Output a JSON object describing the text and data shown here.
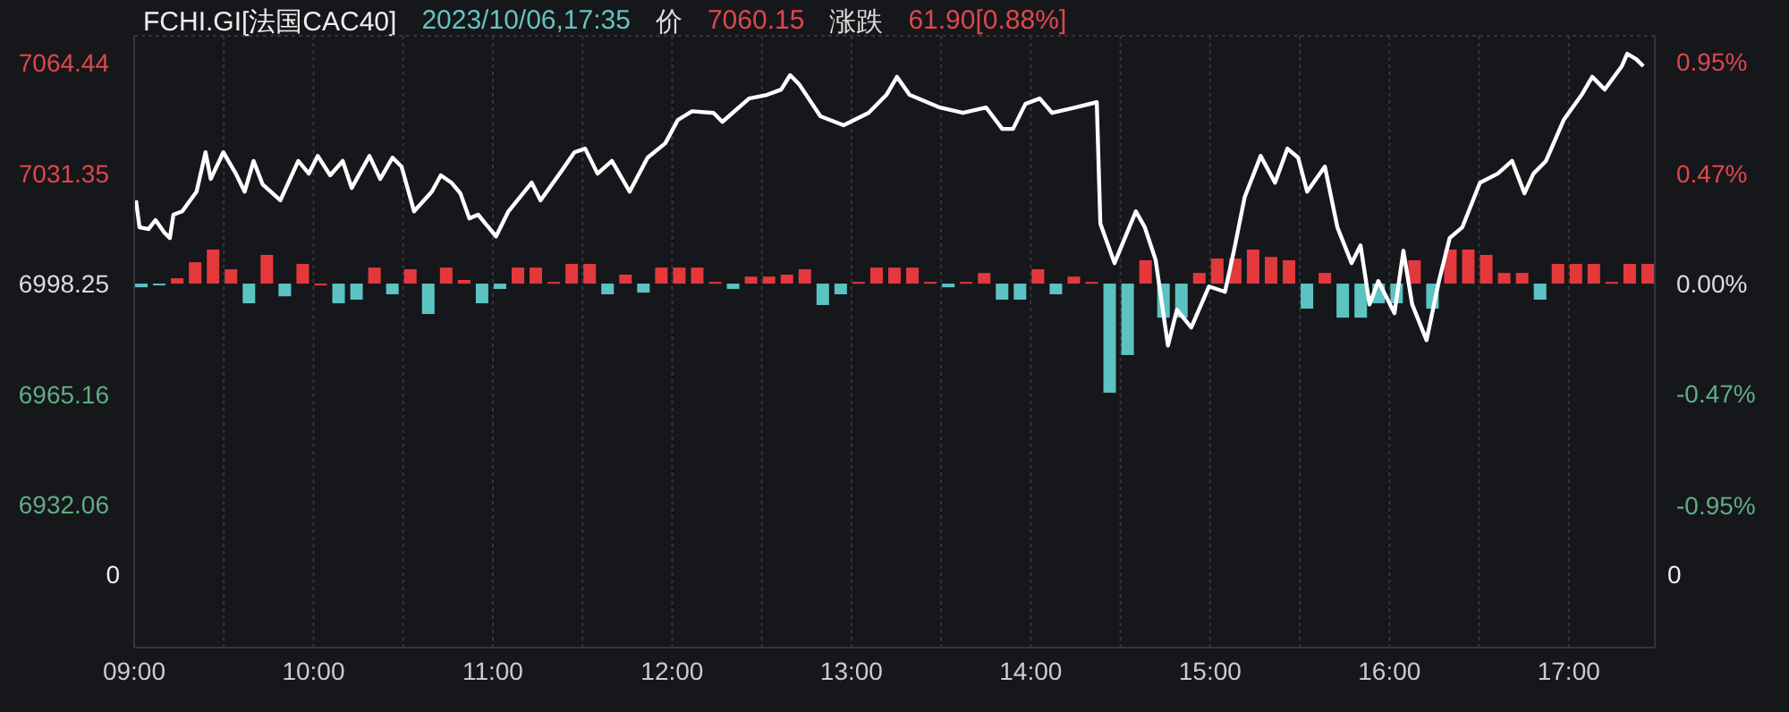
{
  "chart_data": {
    "type": "line",
    "title": "FCHI.GI[法国CAC40]",
    "annotations": [
      "2023/10/06,17:35",
      "价",
      "7060.15",
      "涨跌",
      "61.90[0.88%]",
      "0",
      "0"
    ],
    "xlim": [
      9,
      17.48
    ],
    "xticks": [
      {
        "value": 9,
        "label": "09:00"
      },
      {
        "value": 9.5,
        "label": null
      },
      {
        "value": 10,
        "label": "10:00"
      },
      {
        "value": 10.5,
        "label": null
      },
      {
        "value": 11,
        "label": "11:00"
      },
      {
        "value": 11.5,
        "label": null
      },
      {
        "value": 12,
        "label": "12:00"
      },
      {
        "value": 12.5,
        "label": null
      },
      {
        "value": 13,
        "label": "13:00"
      },
      {
        "value": 13.5,
        "label": null
      },
      {
        "value": 14,
        "label": "14:00"
      },
      {
        "value": 14.5,
        "label": null
      },
      {
        "value": 15,
        "label": "15:00"
      },
      {
        "value": 15.5,
        "label": null
      },
      {
        "value": 16,
        "label": "16:00"
      },
      {
        "value": 16.5,
        "label": null
      },
      {
        "value": 17,
        "label": "17:00"
      }
    ],
    "ylim": [
      6889.2,
      7072.5
    ],
    "yticks": [
      7064.44,
      7031.35,
      6998.25,
      6965.16,
      6932.06
    ],
    "y2lim": [
      -1.558,
      1.061
    ],
    "y2ticks": [
      {
        "value": 0.95,
        "label": "0.95%"
      },
      {
        "value": 0.47,
        "label": "0.47%"
      },
      {
        "value": 0,
        "label": "0.00%"
      },
      {
        "value": -0.47,
        "label": "-0.47%"
      },
      {
        "value": -0.95,
        "label": "-0.95%"
      }
    ],
    "grid": true,
    "series": [
      {
        "type": "bar",
        "x": [
          9.04,
          9.14,
          9.24,
          9.34,
          9.44,
          9.54,
          9.64,
          9.74,
          9.84,
          9.94,
          10.04,
          10.14,
          10.24,
          10.34,
          10.44,
          10.54,
          10.64,
          10.74,
          10.84,
          10.94,
          11.04,
          11.14,
          11.24,
          11.34,
          11.44,
          11.54,
          11.64,
          11.74,
          11.84,
          11.94,
          12.04,
          12.14,
          12.24,
          12.34,
          12.44,
          12.54,
          12.64,
          12.74,
          12.84,
          12.94,
          13.04,
          13.14,
          13.24,
          13.34,
          13.44,
          13.54,
          13.64,
          13.74,
          13.84,
          13.94,
          14.04,
          14.14,
          14.24,
          14.34,
          14.44,
          14.54,
          14.64,
          14.74,
          14.84,
          14.94,
          15.04,
          15.14,
          15.24,
          15.34,
          15.44,
          15.54,
          15.64,
          15.74,
          15.84,
          15.94,
          16.04,
          16.14,
          16.24,
          16.34,
          16.44,
          16.54,
          16.64,
          16.74,
          16.84,
          16.94,
          17.04,
          17.14,
          17.24,
          17.34,
          17.44
        ],
        "values": [
          -1.1,
          -0.5,
          1.6,
          6.4,
          10.2,
          4.3,
          -5.9,
          8.6,
          -3.8,
          5.9,
          0,
          -5.9,
          -4.8,
          4.8,
          -3.2,
          4.3,
          -9.1,
          4.8,
          1.1,
          -5.9,
          -1.6,
          4.8,
          4.8,
          0.5,
          5.9,
          5.9,
          -3.2,
          2.7,
          -2.7,
          4.8,
          4.8,
          4.8,
          0.5,
          -1.6,
          2.1,
          2.1,
          2.7,
          4.3,
          -6.4,
          -3.2,
          0.5,
          4.8,
          4.8,
          4.8,
          0.5,
          -1.1,
          0.5,
          3.2,
          -4.8,
          -4.8,
          4.3,
          -3.2,
          2.1,
          0.5,
          -32.7,
          -21.4,
          7.0,
          -10.2,
          -10.2,
          3.2,
          7.5,
          7.5,
          10.2,
          8.0,
          7.0,
          -7.5,
          3.2,
          -10.2,
          -10.2,
          -5.9,
          -5.9,
          7.0,
          -7.5,
          10.2,
          10.2,
          8.6,
          3.2,
          3.2,
          -4.8,
          5.9,
          5.9,
          5.9,
          0.5,
          5.9,
          5.9
        ],
        "base": [
          6998.25,
          6998.25,
          6998.25,
          6998.25,
          6998.25,
          6998.25,
          6998.25,
          6998.25,
          6998.25,
          6998.25,
          6998.25,
          6998.25,
          6998.25,
          6998.25,
          6998.25,
          6998.25,
          6998.25,
          6998.25,
          6998.25,
          6998.25,
          6998.25,
          6998.25,
          6998.25,
          6998.25,
          6998.25,
          6998.25,
          6998.25,
          6998.25,
          6998.25,
          6998.25,
          6998.25,
          6998.25,
          6998.25,
          6998.25,
          6998.25,
          6998.25,
          6998.25,
          6998.25,
          6998.25,
          6998.25,
          6998.25,
          6998.25,
          6998.25,
          6998.25,
          6998.25,
          6998.25,
          6998.25,
          6998.25,
          6998.25,
          6998.25,
          6998.25,
          6998.25,
          6998.25,
          6998.25,
          6998.25,
          6998.25,
          6998.25,
          6998.25,
          6998.25,
          6998.25,
          6998.25,
          6998.25,
          6998.25,
          6998.25,
          6998.25,
          6998.25,
          6998.25,
          6998.25,
          6998.25,
          6998.25,
          6998.25,
          6998.25,
          6998.25,
          6998.25,
          6998.25,
          6998.25,
          6998.25,
          6998.25,
          6998.25,
          6998.25,
          6998.25,
          6998.25,
          6998.25,
          6998.25,
          6998.25
        ],
        "colors": [
          "#5cc3c3",
          "#5cc3c3",
          "#e4393c",
          "#e4393c",
          "#e4393c",
          "#e4393c",
          "#5cc3c3",
          "#e4393c",
          "#5cc3c3",
          "#e4393c",
          "#e4393c",
          "#5cc3c3",
          "#5cc3c3",
          "#e4393c",
          "#5cc3c3",
          "#e4393c",
          "#5cc3c3",
          "#e4393c",
          "#e4393c",
          "#5cc3c3",
          "#5cc3c3",
          "#e4393c",
          "#e4393c",
          "#e4393c",
          "#e4393c",
          "#e4393c",
          "#5cc3c3",
          "#e4393c",
          "#5cc3c3",
          "#e4393c",
          "#e4393c",
          "#e4393c",
          "#e4393c",
          "#5cc3c3",
          "#e4393c",
          "#e4393c",
          "#e4393c",
          "#e4393c",
          "#5cc3c3",
          "#5cc3c3",
          "#e4393c",
          "#e4393c",
          "#e4393c",
          "#e4393c",
          "#e4393c",
          "#5cc3c3",
          "#e4393c",
          "#e4393c",
          "#5cc3c3",
          "#5cc3c3",
          "#e4393c",
          "#5cc3c3",
          "#e4393c",
          "#e4393c",
          "#5cc3c3",
          "#5cc3c3",
          "#e4393c",
          "#5cc3c3",
          "#5cc3c3",
          "#e4393c",
          "#e4393c",
          "#e4393c",
          "#e4393c",
          "#e4393c",
          "#e4393c",
          "#5cc3c3",
          "#e4393c",
          "#5cc3c3",
          "#5cc3c3",
          "#5cc3c3",
          "#5cc3c3",
          "#e4393c",
          "#5cc3c3",
          "#e4393c",
          "#e4393c",
          "#e4393c",
          "#e4393c",
          "#e4393c",
          "#5cc3c3",
          "#e4393c",
          "#e4393c",
          "#e4393c",
          "#e4393c",
          "#e4393c",
          "#e4393c"
        ]
      },
      {
        "color": "#ffffff",
        "x": [
          9.01,
          9.03,
          9.08,
          9.119,
          9.169,
          9.199,
          9.219,
          9.268,
          9.348,
          9.398,
          9.427,
          9.497,
          9.567,
          9.616,
          9.666,
          9.716,
          9.815,
          9.915,
          9.974,
          10.024,
          10.093,
          10.163,
          10.213,
          10.312,
          10.372,
          10.441,
          10.491,
          10.561,
          10.66,
          10.71,
          10.769,
          10.819,
          10.869,
          10.918,
          11.018,
          11.087,
          11.217,
          11.266,
          11.386,
          11.455,
          11.515,
          11.584,
          11.664,
          11.763,
          11.863,
          11.962,
          12.032,
          12.111,
          12.231,
          12.28,
          12.429,
          12.529,
          12.608,
          12.658,
          12.708,
          12.827,
          12.956,
          13.095,
          13.195,
          13.254,
          13.324,
          13.493,
          13.622,
          13.751,
          13.841,
          13.901,
          13.97,
          14.05,
          14.119,
          14.249,
          14.368,
          14.388,
          14.467,
          14.586,
          14.636,
          14.696,
          14.765,
          14.815,
          14.895,
          14.994,
          15.083,
          15.133,
          15.193,
          15.282,
          15.362,
          15.431,
          15.491,
          15.541,
          15.64,
          15.71,
          15.789,
          15.839,
          15.889,
          15.938,
          16.028,
          16.078,
          16.127,
          16.207,
          16.276,
          16.336,
          16.406,
          16.505,
          16.604,
          16.684,
          16.753,
          16.803,
          16.873,
          16.972,
          17.072,
          17.131,
          17.201,
          17.296,
          17.326,
          17.376,
          17.416
        ],
        "values": [
          7023.2,
          7015.1,
          7014.6,
          7017.3,
          7013.5,
          7011.9,
          7018.9,
          7019.9,
          7025.8,
          7037.6,
          7029.6,
          7037.6,
          7031.2,
          7025.8,
          7035.0,
          7028.0,
          7023.2,
          7035.0,
          7031.2,
          7036.5,
          7030.7,
          7035.0,
          7026.9,
          7036.5,
          7029.6,
          7036.0,
          7033.3,
          7019.9,
          7025.8,
          7030.7,
          7028.5,
          7025.3,
          7017.8,
          7018.9,
          7012.4,
          7019.9,
          7028.5,
          7023.2,
          7032.2,
          7037.6,
          7038.7,
          7031.2,
          7035.0,
          7025.8,
          7036.0,
          7040.3,
          7047.3,
          7049.9,
          7049.4,
          7046.7,
          7053.7,
          7054.8,
          7056.4,
          7060.7,
          7058.0,
          7048.4,
          7045.7,
          7049.4,
          7054.8,
          7060.2,
          7054.8,
          7051.0,
          7049.4,
          7051.0,
          7044.6,
          7044.6,
          7052.1,
          7053.7,
          7049.4,
          7051.0,
          7052.6,
          7016.2,
          7004.4,
          7019.9,
          7015.1,
          7005.4,
          6979.7,
          6990.4,
          6985.1,
          6997.4,
          6995.8,
          7008.1,
          7024.2,
          7036.5,
          7028.5,
          7038.7,
          7036.0,
          7025.8,
          7033.3,
          7015.1,
          7004.4,
          7009.7,
          6992.0,
          6999.0,
          6989.4,
          7008.1,
          6992.0,
          6981.3,
          6999.0,
          7011.9,
          7015.1,
          7028.5,
          7031.2,
          7035.0,
          7025.3,
          7031.2,
          7035.0,
          7047.3,
          7054.8,
          7060.2,
          7056.4,
          7063.4,
          7067.1,
          7065.5,
          7063.4
        ]
      }
    ]
  }
}
